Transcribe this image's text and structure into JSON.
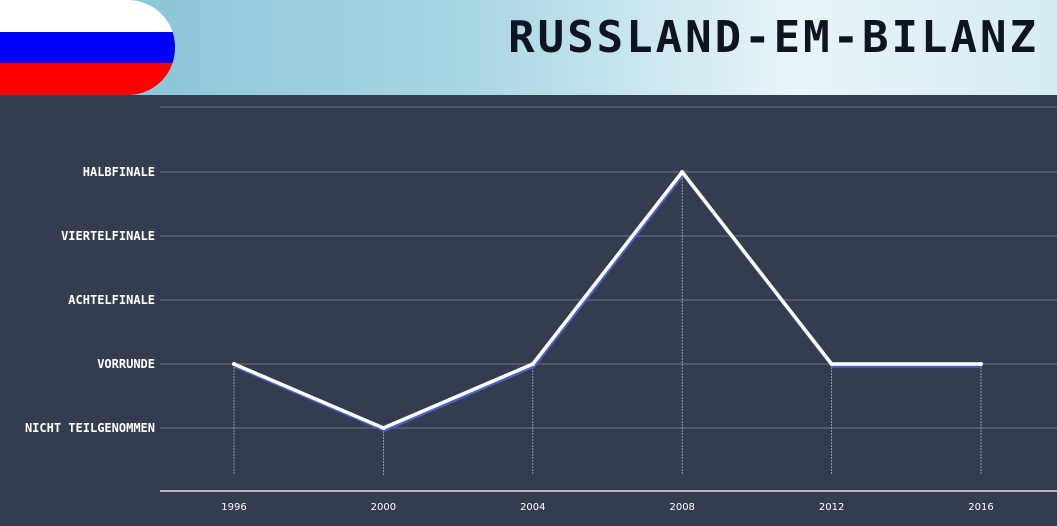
{
  "header": {
    "title": "Russland-EM-Bilanz",
    "flag_colors": [
      "#ffffff",
      "#0000ff",
      "#ff0000"
    ],
    "flag_icon": "russia-flag-icon"
  },
  "chart_data": {
    "type": "line",
    "x": [
      1996,
      2000,
      2004,
      2008,
      2012,
      2016
    ],
    "categories": [
      "1996",
      "2000",
      "2004",
      "2008",
      "2012",
      "2016"
    ],
    "levels": [
      "NICHT TEILGENOMMEN",
      "VORRUNDE",
      "ACHTELFINALE",
      "VIERTELFINALE",
      "HALBFINALE"
    ],
    "series": [
      {
        "values": [
          "VORRUNDE",
          "NICHT TEILGENOMMEN",
          "VORRUNDE",
          "HALBFINALE",
          "VORRUNDE",
          "VORRUNDE"
        ]
      }
    ],
    "title": "",
    "xlabel": "",
    "ylabel": "",
    "grid": true,
    "colors": {
      "background": "#343d4f",
      "line": "#ffffff",
      "line_shadow": "#4b62c9",
      "grid": "#6c7485",
      "axis": "#ffffff"
    }
  }
}
